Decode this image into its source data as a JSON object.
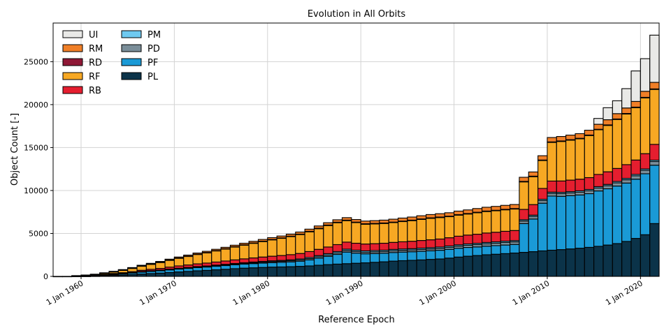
{
  "chart_data": {
    "type": "bar",
    "stacked": true,
    "title": "Evolution in All Orbits",
    "xlabel": "Reference Epoch",
    "ylabel": "Object Count [-]",
    "ylim": [
      0,
      29500
    ],
    "yticks": [
      0,
      5000,
      10000,
      15000,
      20000,
      25000
    ],
    "xlim": [
      "1957-01-01",
      "2021-12-31"
    ],
    "xticks": [
      {
        "date": "1960-01-01",
        "label": "1 Jan 1960"
      },
      {
        "date": "1970-01-01",
        "label": "1 Jan 1970"
      },
      {
        "date": "1980-01-01",
        "label": "1 Jan 1980"
      },
      {
        "date": "1990-01-01",
        "label": "1 Jan 1990"
      },
      {
        "date": "2000-01-01",
        "label": "1 Jan 2000"
      },
      {
        "date": "2010-01-01",
        "label": "1 Jan 2010"
      },
      {
        "date": "2020-01-01",
        "label": "1 Jan 2020"
      }
    ],
    "grid": true,
    "legend_position": "top-left",
    "categories": [
      1957,
      1958,
      1959,
      1960,
      1961,
      1962,
      1963,
      1964,
      1965,
      1966,
      1967,
      1968,
      1969,
      1970,
      1971,
      1972,
      1973,
      1974,
      1975,
      1976,
      1977,
      1978,
      1979,
      1980,
      1981,
      1982,
      1983,
      1984,
      1985,
      1986,
      1987,
      1988,
      1989,
      1990,
      1991,
      1992,
      1993,
      1994,
      1995,
      1996,
      1997,
      1998,
      1999,
      2000,
      2001,
      2002,
      2003,
      2004,
      2005,
      2006,
      2007,
      2008,
      2009,
      2010,
      2011,
      2012,
      2013,
      2014,
      2015,
      2016,
      2017,
      2018,
      2019,
      2020,
      2021
    ],
    "series": [
      {
        "name": "PL",
        "color": "#0b3349",
        "values": [
          1,
          2,
          10,
          20,
          40,
          70,
          110,
          150,
          200,
          270,
          330,
          380,
          450,
          520,
          580,
          650,
          700,
          770,
          830,
          900,
          960,
          1000,
          1040,
          1080,
          1100,
          1130,
          1170,
          1220,
          1300,
          1370,
          1430,
          1480,
          1530,
          1580,
          1640,
          1700,
          1780,
          1830,
          1870,
          1920,
          1980,
          2030,
          2130,
          2250,
          2350,
          2430,
          2520,
          2580,
          2650,
          2720,
          2800,
          2880,
          2970,
          3050,
          3120,
          3200,
          3280,
          3380,
          3500,
          3650,
          3820,
          4070,
          4420,
          4850,
          6150
        ]
      },
      {
        "name": "PF",
        "color": "#1a9ad6",
        "values": [
          0,
          0,
          10,
          20,
          40,
          80,
          120,
          150,
          190,
          240,
          260,
          280,
          310,
          330,
          350,
          370,
          390,
          410,
          430,
          450,
          470,
          490,
          505,
          520,
          540,
          560,
          600,
          700,
          820,
          960,
          1130,
          1350,
          1180,
          1050,
          1020,
          1000,
          1000,
          1000,
          1000,
          1000,
          1000,
          1010,
          1020,
          1030,
          1020,
          1000,
          1000,
          1000,
          1000,
          1000,
          3350,
          3800,
          5550,
          6300,
          6200,
          6200,
          6200,
          6250,
          6450,
          6550,
          6700,
          6800,
          6900,
          7100,
          6800
        ]
      },
      {
        "name": "PD",
        "color": "#7a8e99",
        "values": [
          0,
          0,
          0,
          0,
          5,
          10,
          15,
          20,
          25,
          30,
          35,
          40,
          45,
          50,
          55,
          60,
          60,
          65,
          70,
          75,
          80,
          90,
          100,
          110,
          120,
          130,
          140,
          150,
          160,
          170,
          180,
          190,
          190,
          190,
          200,
          200,
          210,
          210,
          210,
          220,
          220,
          230,
          240,
          250,
          260,
          270,
          280,
          290,
          300,
          300,
          300,
          300,
          310,
          310,
          320,
          320,
          330,
          340,
          350,
          360,
          370,
          380,
          390,
          400,
          420
        ]
      },
      {
        "name": "PM",
        "color": "#6ec9f0",
        "values": [
          0,
          0,
          0,
          0,
          5,
          10,
          15,
          20,
          25,
          30,
          35,
          40,
          45,
          50,
          55,
          60,
          60,
          65,
          70,
          75,
          80,
          90,
          100,
          100,
          100,
          110,
          120,
          130,
          140,
          150,
          150,
          150,
          150,
          150,
          150,
          150,
          150,
          150,
          150,
          150,
          150,
          150,
          150,
          150,
          150,
          150,
          150,
          150,
          150,
          150,
          150,
          150,
          150,
          150,
          150,
          150,
          150,
          150,
          150,
          150,
          160,
          160,
          160,
          160,
          160
        ]
      },
      {
        "name": "RB",
        "color": "#e51e2f",
        "values": [
          0,
          0,
          20,
          30,
          40,
          60,
          80,
          90,
          110,
          140,
          160,
          190,
          230,
          270,
          290,
          320,
          340,
          360,
          390,
          420,
          450,
          480,
          510,
          540,
          570,
          600,
          640,
          690,
          730,
          770,
          810,
          820,
          810,
          800,
          800,
          810,
          820,
          840,
          860,
          890,
          910,
          930,
          960,
          1000,
          1030,
          1060,
          1100,
          1120,
          1150,
          1170,
          1200,
          1230,
          1260,
          1290,
          1320,
          1340,
          1360,
          1380,
          1420,
          1470,
          1520,
          1600,
          1680,
          1780,
          1840
        ]
      },
      {
        "name": "RF",
        "color": "#f7a823",
        "values": [
          0,
          0,
          50,
          80,
          100,
          150,
          200,
          300,
          400,
          500,
          600,
          700,
          800,
          900,
          1000,
          1100,
          1200,
          1300,
          1400,
          1500,
          1600,
          1700,
          1800,
          1900,
          2000,
          2100,
          2200,
          2300,
          2400,
          2500,
          2550,
          2500,
          2400,
          2300,
          2300,
          2300,
          2300,
          2350,
          2400,
          2450,
          2500,
          2500,
          2450,
          2450,
          2450,
          2500,
          2500,
          2500,
          2500,
          2500,
          3200,
          3250,
          3250,
          4500,
          4600,
          4650,
          4700,
          4900,
          5200,
          5400,
          5700,
          5900,
          6100,
          6500,
          6400
        ]
      },
      {
        "name": "RD",
        "color": "#8f1836",
        "values": [
          0,
          0,
          0,
          0,
          5,
          10,
          10,
          10,
          15,
          15,
          20,
          20,
          25,
          25,
          30,
          30,
          30,
          35,
          35,
          40,
          40,
          45,
          45,
          50,
          50,
          55,
          55,
          60,
          60,
          60,
          60,
          60,
          60,
          60,
          60,
          60,
          60,
          60,
          60,
          60,
          60,
          60,
          60,
          60,
          60,
          60,
          60,
          60,
          60,
          60,
          60,
          60,
          60,
          60,
          60,
          60,
          60,
          60,
          60,
          60,
          60,
          60,
          60,
          60,
          60
        ]
      },
      {
        "name": "RM",
        "color": "#f07f27",
        "values": [
          0,
          0,
          0,
          10,
          20,
          30,
          40,
          50,
          60,
          70,
          80,
          90,
          100,
          110,
          120,
          130,
          140,
          150,
          160,
          170,
          180,
          190,
          200,
          210,
          220,
          230,
          240,
          250,
          260,
          270,
          280,
          290,
          300,
          310,
          320,
          330,
          340,
          350,
          360,
          370,
          380,
          390,
          400,
          410,
          420,
          430,
          440,
          450,
          460,
          470,
          480,
          490,
          500,
          510,
          520,
          530,
          540,
          560,
          580,
          600,
          620,
          640,
          660,
          700,
          760
        ]
      },
      {
        "name": "UI",
        "color": "#e9e9e7",
        "values": [
          0,
          0,
          0,
          0,
          0,
          0,
          0,
          0,
          0,
          0,
          0,
          0,
          0,
          0,
          0,
          0,
          0,
          0,
          0,
          0,
          0,
          0,
          0,
          0,
          0,
          0,
          0,
          0,
          0,
          0,
          0,
          0,
          0,
          0,
          0,
          0,
          0,
          0,
          0,
          0,
          0,
          0,
          0,
          0,
          0,
          0,
          0,
          0,
          0,
          0,
          0,
          0,
          0,
          0,
          0,
          0,
          0,
          0,
          680,
          1400,
          1500,
          2250,
          3550,
          3800,
          5500
        ]
      }
    ],
    "legend_order": [
      "UI",
      "RM",
      "RD",
      "RF",
      "RB",
      "PM",
      "PD",
      "PF",
      "PL"
    ]
  }
}
